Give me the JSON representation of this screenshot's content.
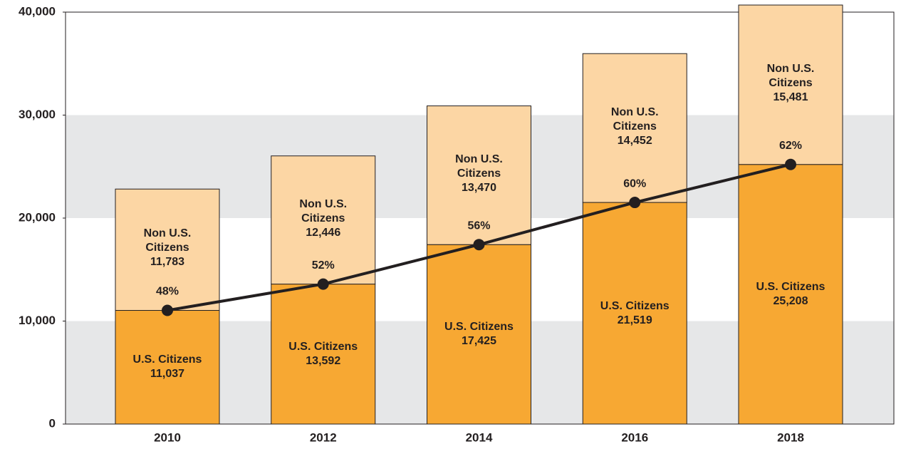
{
  "chart_data": {
    "type": "stacked-bar",
    "categories": [
      "2010",
      "2012",
      "2014",
      "2016",
      "2018"
    ],
    "series": [
      {
        "name": "U.S. Citizens",
        "color": "#f7a833",
        "values": [
          11037,
          13592,
          17425,
          21519,
          25208
        ],
        "value_labels": [
          "11,037",
          "13,592",
          "17,425",
          "21,519",
          "25,208"
        ]
      },
      {
        "name": "Non U.S. Citizens",
        "color": "#fcd6a4",
        "values": [
          11783,
          12446,
          13470,
          14452,
          15481
        ],
        "value_labels": [
          "11,783",
          "12,446",
          "13,470",
          "14,452",
          "15,481"
        ]
      }
    ],
    "share_labels": [
      "48%",
      "52%",
      "56%",
      "60%",
      "62%"
    ],
    "line_color": "#231f20",
    "ylim": [
      0,
      40000
    ],
    "yticks": [
      0,
      {
        "value": 10000,
        "label": "10,000"
      },
      {
        "value": 20000,
        "label": "20,000"
      },
      {
        "value": 30000,
        "label": "30,000"
      },
      {
        "value": 40000,
        "label": "40,000"
      }
    ],
    "grid": "bands"
  }
}
